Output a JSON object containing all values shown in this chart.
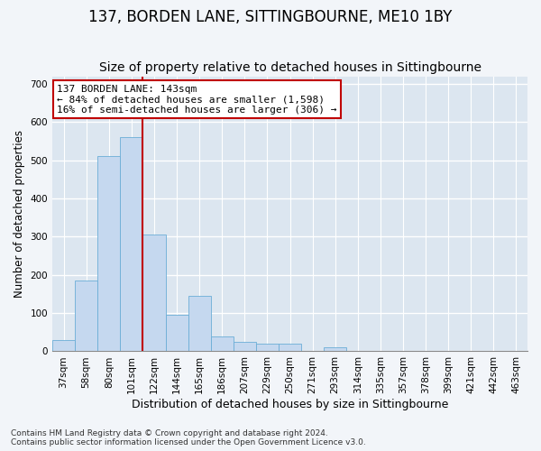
{
  "title": "137, BORDEN LANE, SITTINGBOURNE, ME10 1BY",
  "subtitle": "Size of property relative to detached houses in Sittingbourne",
  "xlabel": "Distribution of detached houses by size in Sittingbourne",
  "ylabel": "Number of detached properties",
  "categories": [
    "37sqm",
    "58sqm",
    "80sqm",
    "101sqm",
    "122sqm",
    "144sqm",
    "165sqm",
    "186sqm",
    "207sqm",
    "229sqm",
    "250sqm",
    "271sqm",
    "293sqm",
    "314sqm",
    "335sqm",
    "357sqm",
    "378sqm",
    "399sqm",
    "421sqm",
    "442sqm",
    "463sqm"
  ],
  "values": [
    30,
    185,
    510,
    560,
    305,
    95,
    145,
    38,
    25,
    20,
    20,
    0,
    10,
    0,
    0,
    0,
    0,
    0,
    0,
    0,
    0
  ],
  "bar_color": "#c5d8ef",
  "bar_edge_color": "#6baed6",
  "vline_color": "#c00000",
  "vline_index": 4,
  "annotation_text": "137 BORDEN LANE: 143sqm\n← 84% of detached houses are smaller (1,598)\n16% of semi-detached houses are larger (306) →",
  "annotation_box_color": "white",
  "annotation_box_edge_color": "#c00000",
  "ylim": [
    0,
    720
  ],
  "yticks": [
    0,
    100,
    200,
    300,
    400,
    500,
    600,
    700
  ],
  "plot_bg_color": "#dce6f0",
  "fig_bg_color": "#f2f5f9",
  "grid_color": "white",
  "footnote": "Contains HM Land Registry data © Crown copyright and database right 2024.\nContains public sector information licensed under the Open Government Licence v3.0.",
  "title_fontsize": 12,
  "subtitle_fontsize": 10,
  "xlabel_fontsize": 9,
  "ylabel_fontsize": 8.5,
  "tick_fontsize": 7.5,
  "annotation_fontsize": 8,
  "footnote_fontsize": 6.5
}
